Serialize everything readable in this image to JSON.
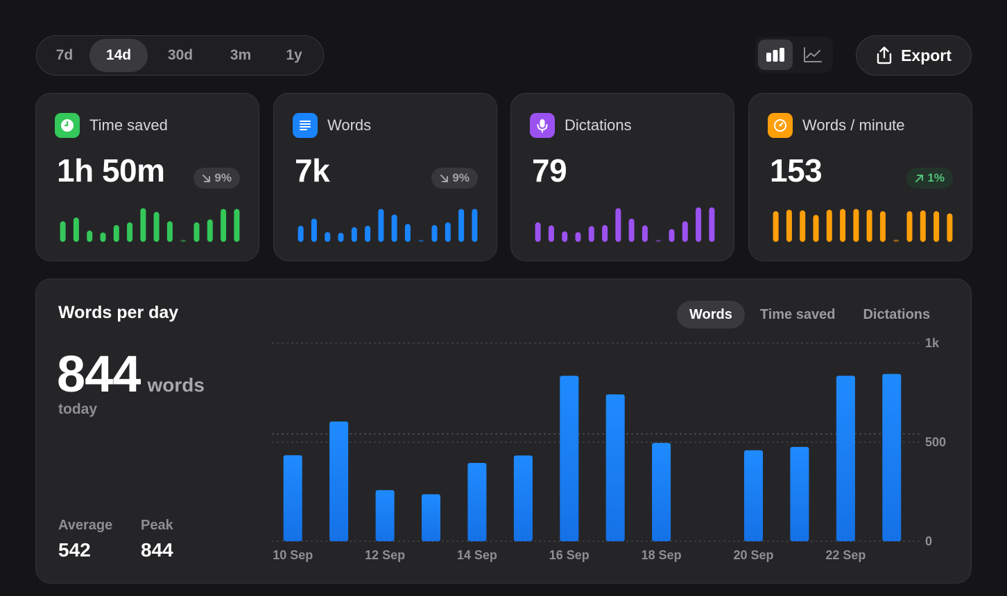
{
  "range_selector": {
    "options": [
      "7d",
      "14d",
      "30d",
      "3m",
      "1y"
    ],
    "selected": "14d"
  },
  "view_toggle": {
    "options": [
      "bar-chart-icon",
      "line-chart-icon"
    ],
    "selected": "bar-chart-icon"
  },
  "export": {
    "label": "Export",
    "icon": "share-icon"
  },
  "colors": {
    "green": "#34c759",
    "blue": "#1a84ff",
    "purple": "#9b52f0",
    "orange": "#ff9f0a",
    "muted": "#a4a4aa",
    "up": "#52c27a"
  },
  "cards": [
    {
      "title": "Time saved",
      "icon": "clock-icon",
      "value": "1h 50m",
      "delta": {
        "direction": "down",
        "text": "9%"
      },
      "spark": [
        0.55,
        0.65,
        0.3,
        0.25,
        0.45,
        0.52,
        0.9,
        0.8,
        0.55,
        0.05,
        0.52,
        0.6,
        0.88,
        0.88
      ]
    },
    {
      "title": "Words",
      "icon": "text-lines-icon",
      "value": "7k",
      "delta": {
        "direction": "down",
        "text": "9%"
      },
      "spark": [
        0.43,
        0.62,
        0.26,
        0.24,
        0.39,
        0.43,
        0.88,
        0.73,
        0.48,
        0.03,
        0.45,
        0.52,
        0.88,
        0.88
      ]
    },
    {
      "title": "Dictations",
      "icon": "microphone-icon",
      "value": "79",
      "delta": null,
      "spark": [
        0.52,
        0.44,
        0.28,
        0.26,
        0.42,
        0.45,
        0.9,
        0.62,
        0.44,
        0.05,
        0.34,
        0.55,
        0.92,
        0.92
      ]
    },
    {
      "title": "Words / minute",
      "icon": "speedometer-icon",
      "value": "153",
      "delta": {
        "direction": "up",
        "text": "1%"
      },
      "spark": [
        0.82,
        0.86,
        0.84,
        0.72,
        0.86,
        0.88,
        0.88,
        0.86,
        0.82,
        0.06,
        0.82,
        0.84,
        0.82,
        0.76
      ]
    }
  ],
  "main": {
    "title": "Words per day",
    "big_value": "844",
    "big_unit": "words",
    "sub": "today",
    "stats": [
      {
        "label": "Average",
        "value": "542"
      },
      {
        "label": "Peak",
        "value": "844"
      }
    ],
    "metric_tabs": [
      "Words",
      "Time saved",
      "Dictations"
    ],
    "metric_selected": "Words"
  },
  "chart_data": {
    "type": "bar",
    "categories": [
      "10 Sep",
      "11 Sep",
      "12 Sep",
      "13 Sep",
      "14 Sep",
      "15 Sep",
      "16 Sep",
      "17 Sep",
      "18 Sep",
      "19 Sep",
      "20 Sep",
      "21 Sep",
      "22 Sep",
      "23 Sep"
    ],
    "values": [
      434,
      604,
      258,
      237,
      395,
      433,
      835,
      741,
      496,
      0,
      459,
      476,
      835,
      844
    ],
    "x_tick_labels": [
      "10 Sep",
      "12 Sep",
      "14 Sep",
      "16 Sep",
      "18 Sep",
      "20 Sep",
      "22 Sep"
    ],
    "y_ticks": [
      0,
      500,
      1000
    ],
    "y_tick_labels": [
      "0",
      "500",
      "1k"
    ],
    "ylim": [
      0,
      1000
    ],
    "average": 542,
    "grid": true
  }
}
